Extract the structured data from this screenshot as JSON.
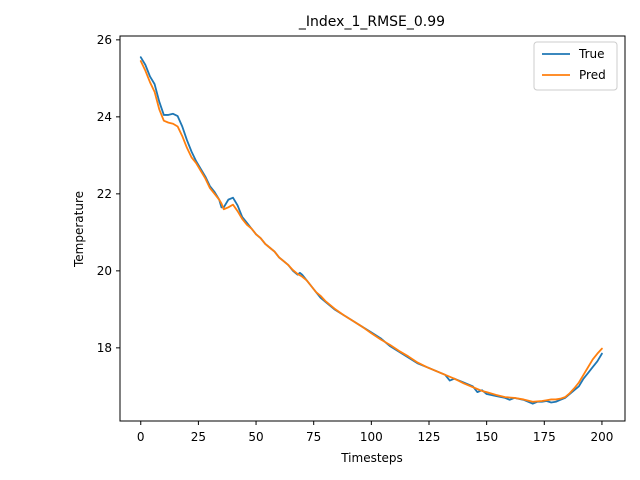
{
  "chart_data": {
    "type": "line",
    "title": "_Index_1_RMSE_0.99",
    "xlabel": "Timesteps",
    "ylabel": "Temperature",
    "xlim": [
      -9,
      210
    ],
    "ylim": [
      16.1,
      26.1
    ],
    "xticks": [
      0,
      25,
      50,
      75,
      100,
      125,
      150,
      175,
      200
    ],
    "yticks": [
      18,
      20,
      22,
      24,
      26
    ],
    "grid": false,
    "legend_position": "top-right",
    "series": [
      {
        "name": "True",
        "color": "#1f77b4",
        "x": [
          0,
          2,
          4,
          6,
          8,
          10,
          12,
          14,
          16,
          18,
          20,
          22,
          24,
          26,
          28,
          30,
          32,
          34,
          35,
          36,
          38,
          40,
          42,
          44,
          46,
          48,
          50,
          52,
          54,
          56,
          58,
          60,
          62,
          64,
          66,
          68,
          69,
          70,
          72,
          74,
          76,
          78,
          80,
          84,
          88,
          92,
          96,
          100,
          104,
          108,
          112,
          116,
          120,
          124,
          128,
          132,
          134,
          136,
          140,
          144,
          146,
          148,
          150,
          154,
          158,
          160,
          162,
          166,
          170,
          172,
          174,
          176,
          178,
          180,
          182,
          184,
          186,
          188,
          190,
          192,
          194,
          196,
          198,
          200
        ],
        "y": [
          25.55,
          25.35,
          25.05,
          24.85,
          24.4,
          24.05,
          24.05,
          24.08,
          24.02,
          23.75,
          23.4,
          23.1,
          22.85,
          22.65,
          22.45,
          22.2,
          22.05,
          21.85,
          21.65,
          21.65,
          21.85,
          21.9,
          21.7,
          21.4,
          21.25,
          21.1,
          20.95,
          20.85,
          20.7,
          20.6,
          20.5,
          20.35,
          20.25,
          20.15,
          20.0,
          19.9,
          19.95,
          19.9,
          19.75,
          19.6,
          19.45,
          19.3,
          19.2,
          19.0,
          18.85,
          18.7,
          18.55,
          18.4,
          18.25,
          18.05,
          17.9,
          17.75,
          17.6,
          17.5,
          17.4,
          17.3,
          17.15,
          17.2,
          17.1,
          17.0,
          16.85,
          16.9,
          16.8,
          16.75,
          16.7,
          16.65,
          16.7,
          16.65,
          16.55,
          16.6,
          16.6,
          16.62,
          16.58,
          16.6,
          16.65,
          16.7,
          16.8,
          16.9,
          17.0,
          17.2,
          17.35,
          17.5,
          17.65,
          17.85
        ]
      },
      {
        "name": "Pred",
        "color": "#ff7f0e",
        "x": [
          0,
          2,
          4,
          6,
          8,
          10,
          12,
          14,
          16,
          18,
          20,
          22,
          24,
          26,
          28,
          30,
          32,
          34,
          35,
          36,
          38,
          40,
          42,
          44,
          46,
          48,
          50,
          52,
          54,
          56,
          58,
          60,
          62,
          64,
          66,
          68,
          70,
          72,
          74,
          76,
          78,
          80,
          84,
          88,
          92,
          96,
          100,
          104,
          108,
          112,
          116,
          120,
          124,
          128,
          132,
          136,
          140,
          144,
          148,
          150,
          154,
          158,
          162,
          166,
          170,
          174,
          176,
          178,
          180,
          182,
          184,
          186,
          188,
          190,
          192,
          194,
          196,
          198,
          200
        ],
        "y": [
          25.45,
          25.2,
          24.9,
          24.65,
          24.2,
          23.9,
          23.85,
          23.82,
          23.75,
          23.5,
          23.2,
          22.95,
          22.8,
          22.6,
          22.4,
          22.15,
          22.0,
          21.85,
          21.75,
          21.6,
          21.65,
          21.72,
          21.55,
          21.35,
          21.2,
          21.1,
          20.95,
          20.85,
          20.7,
          20.6,
          20.5,
          20.35,
          20.25,
          20.15,
          20.02,
          19.92,
          19.85,
          19.75,
          19.6,
          19.45,
          19.35,
          19.22,
          19.02,
          18.85,
          18.7,
          18.55,
          18.38,
          18.22,
          18.08,
          17.92,
          17.78,
          17.62,
          17.5,
          17.4,
          17.3,
          17.2,
          17.08,
          16.98,
          16.88,
          16.85,
          16.78,
          16.72,
          16.7,
          16.66,
          16.6,
          16.62,
          16.64,
          16.66,
          16.66,
          16.68,
          16.72,
          16.82,
          16.95,
          17.1,
          17.3,
          17.5,
          17.7,
          17.85,
          17.98
        ]
      }
    ]
  }
}
